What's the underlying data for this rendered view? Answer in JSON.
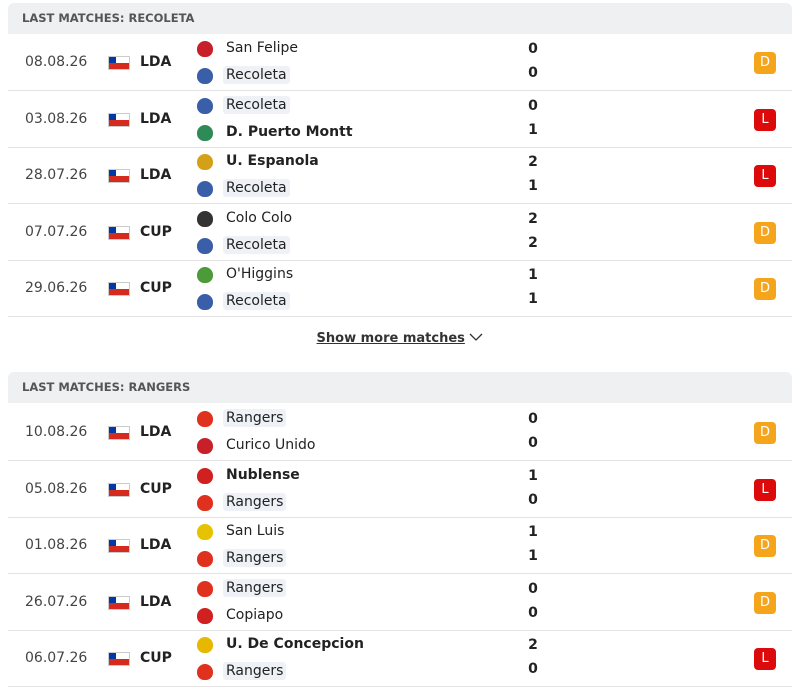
{
  "sections": [
    {
      "title": "LAST MATCHES: RECOLETA",
      "matches": [
        {
          "date": "08.08.26",
          "competition": "LDA",
          "home": {
            "name": "San Felipe",
            "score": 0,
            "bold": false,
            "highlight": false,
            "color": "#c8202a"
          },
          "away": {
            "name": "Recoleta",
            "score": 0,
            "bold": false,
            "highlight": true,
            "color": "#3a5fa8"
          },
          "result": "D"
        },
        {
          "date": "03.08.26",
          "competition": "LDA",
          "home": {
            "name": "Recoleta",
            "score": 0,
            "bold": false,
            "highlight": true,
            "color": "#3a5fa8"
          },
          "away": {
            "name": "D. Puerto Montt",
            "score": 1,
            "bold": true,
            "highlight": false,
            "color": "#2e8b57"
          },
          "result": "L"
        },
        {
          "date": "28.07.26",
          "competition": "LDA",
          "home": {
            "name": "U. Espanola",
            "score": 2,
            "bold": true,
            "highlight": false,
            "color": "#d4a017"
          },
          "away": {
            "name": "Recoleta",
            "score": 1,
            "bold": false,
            "highlight": true,
            "color": "#3a5fa8"
          },
          "result": "L"
        },
        {
          "date": "07.07.26",
          "competition": "CUP",
          "home": {
            "name": "Colo Colo",
            "score": 2,
            "bold": false,
            "highlight": false,
            "color": "#333333"
          },
          "away": {
            "name": "Recoleta",
            "score": 2,
            "bold": false,
            "highlight": true,
            "color": "#3a5fa8"
          },
          "result": "D"
        },
        {
          "date": "29.06.26",
          "competition": "CUP",
          "home": {
            "name": "O'Higgins",
            "score": 1,
            "bold": false,
            "highlight": false,
            "color": "#4c9a3a"
          },
          "away": {
            "name": "Recoleta",
            "score": 1,
            "bold": false,
            "highlight": true,
            "color": "#3a5fa8"
          },
          "result": "D"
        }
      ]
    },
    {
      "title": "LAST MATCHES: RANGERS",
      "matches": [
        {
          "date": "10.08.26",
          "competition": "LDA",
          "home": {
            "name": "Rangers",
            "score": 0,
            "bold": false,
            "highlight": true,
            "color": "#e0301e"
          },
          "away": {
            "name": "Curico Unido",
            "score": 0,
            "bold": false,
            "highlight": false,
            "color": "#c8202a"
          },
          "result": "D"
        },
        {
          "date": "05.08.26",
          "competition": "CUP",
          "home": {
            "name": "Nublense",
            "score": 1,
            "bold": true,
            "highlight": false,
            "color": "#d02020"
          },
          "away": {
            "name": "Rangers",
            "score": 0,
            "bold": false,
            "highlight": true,
            "color": "#e0301e"
          },
          "result": "L"
        },
        {
          "date": "01.08.26",
          "competition": "LDA",
          "home": {
            "name": "San Luis",
            "score": 1,
            "bold": false,
            "highlight": false,
            "color": "#e6c200"
          },
          "away": {
            "name": "Rangers",
            "score": 1,
            "bold": false,
            "highlight": true,
            "color": "#e0301e"
          },
          "result": "D"
        },
        {
          "date": "26.07.26",
          "competition": "LDA",
          "home": {
            "name": "Rangers",
            "score": 0,
            "bold": false,
            "highlight": true,
            "color": "#e0301e"
          },
          "away": {
            "name": "Copiapo",
            "score": 0,
            "bold": false,
            "highlight": false,
            "color": "#d02020"
          },
          "result": "D"
        },
        {
          "date": "06.07.26",
          "competition": "CUP",
          "home": {
            "name": "U. De Concepcion",
            "score": 2,
            "bold": true,
            "highlight": false,
            "color": "#e6b800"
          },
          "away": {
            "name": "Rangers",
            "score": 0,
            "bold": false,
            "highlight": true,
            "color": "#e0301e"
          },
          "result": "L"
        }
      ]
    }
  ],
  "show_more": "Show more matches",
  "badge_colors": {
    "D": "#f5a51c",
    "L": "#dc0a0a"
  }
}
